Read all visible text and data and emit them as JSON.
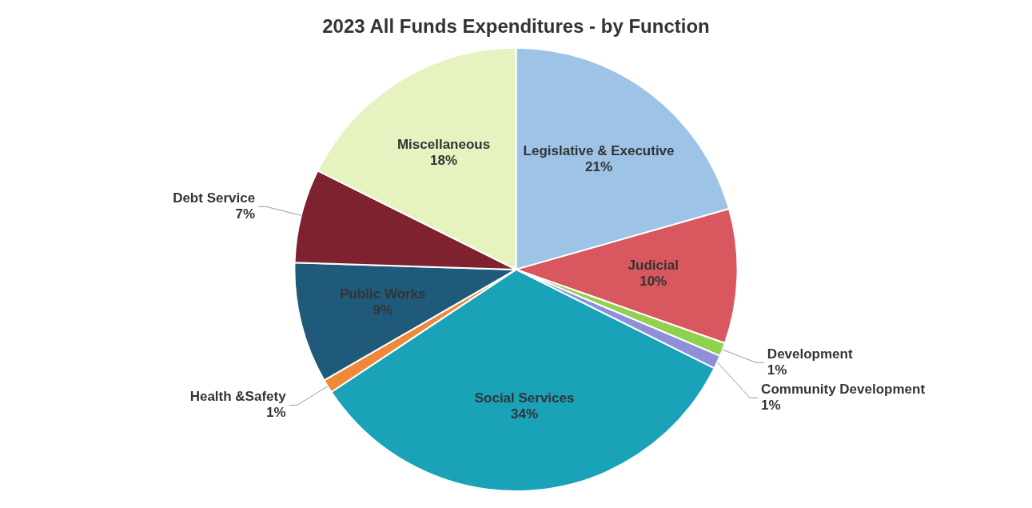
{
  "chart_data": {
    "type": "pie",
    "title": "2023 All Funds Expenditures - by Function",
    "categories": [
      "Legislative & Executive",
      "Judicial",
      "Development",
      "Community Development",
      "Social Services",
      "Health &Safety",
      "Public Works",
      "Debt Service",
      "Miscellaneous"
    ],
    "values": [
      21,
      10,
      1,
      1,
      34,
      1,
      9,
      7,
      18
    ],
    "value_labels": [
      "21%",
      "10%",
      "1%",
      "1%",
      "34%",
      "1%",
      "9%",
      "7%",
      "18%"
    ],
    "colors": [
      "#9dc3e6",
      "#d9575f",
      "#92d050",
      "#8e8fd8",
      "#1aa3b8",
      "#f0883a",
      "#1f5a7a",
      "#7f2230",
      "#e6f2c0"
    ],
    "legend": false
  }
}
